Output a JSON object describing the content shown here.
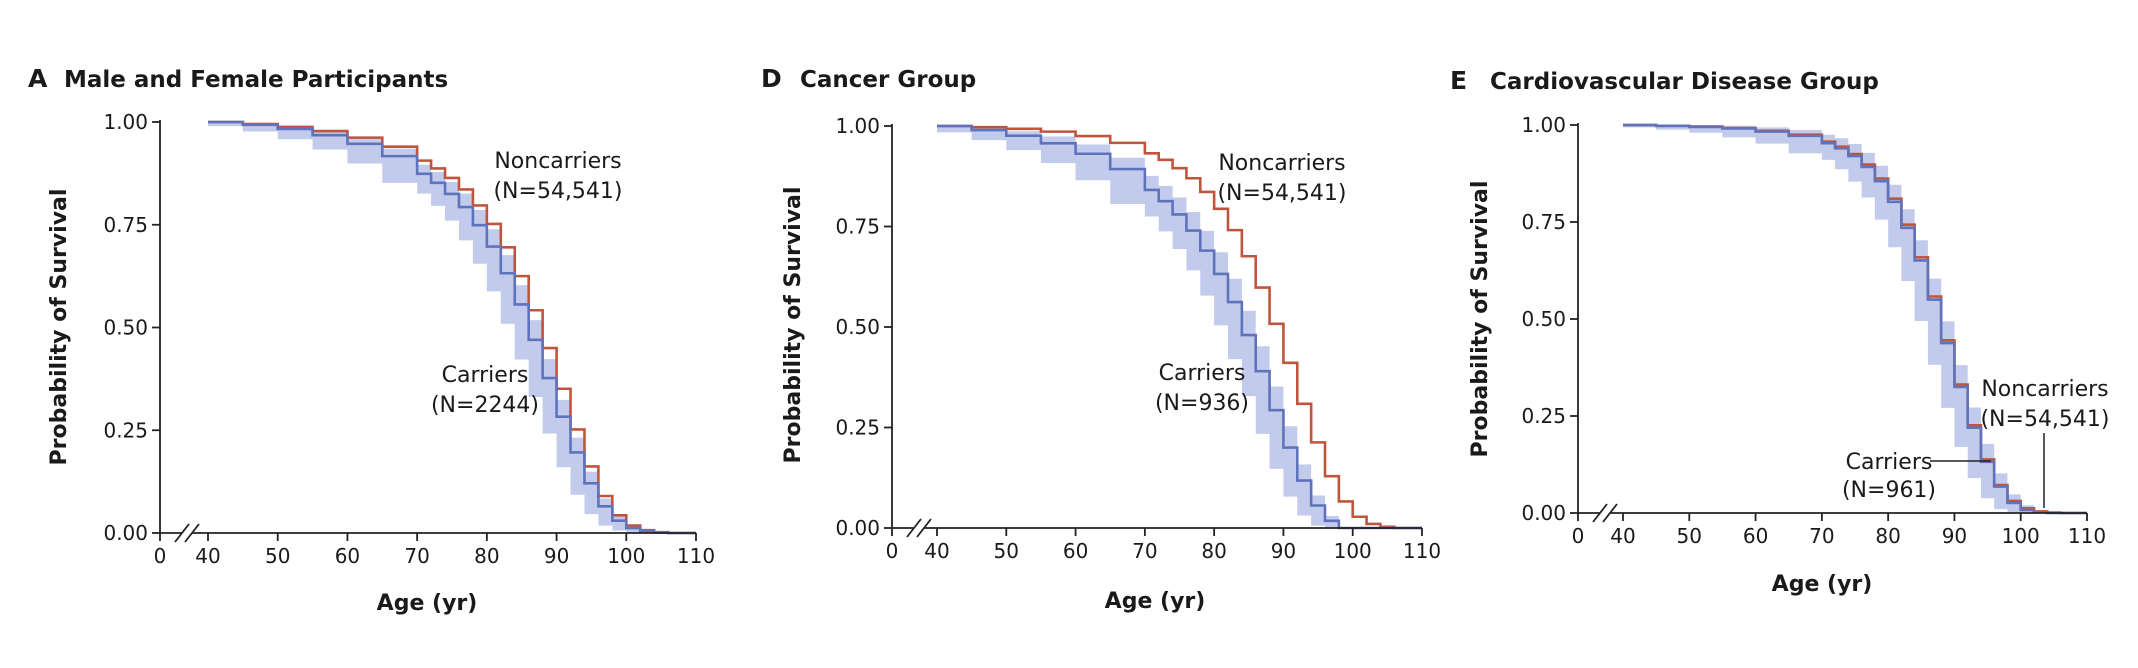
{
  "figure": {
    "panels": [
      {
        "letter": "A",
        "title": "Male and Female Participants",
        "ylabel": "Probability of Survival",
        "xlabel": "Age (yr)",
        "annotations": {
          "noncarriers_name": "Noncarriers",
          "noncarriers_n": "(N=54,541)",
          "carriers_name": "Carriers",
          "carriers_n": "(N=2244)"
        }
      },
      {
        "letter": "D",
        "title": "Cancer Group",
        "ylabel": "Probability of Survival",
        "xlabel": "Age (yr)",
        "annotations": {
          "noncarriers_name": "Noncarriers",
          "noncarriers_n": "(N=54,541)",
          "carriers_name": "Carriers",
          "carriers_n": "(N=936)"
        }
      },
      {
        "letter": "E",
        "title": "Cardiovascular Disease Group",
        "ylabel": "Probability of Survival",
        "xlabel": "Age (yr)",
        "annotations": {
          "noncarriers_name": "Noncarriers",
          "noncarriers_n": "(N=54,541)",
          "carriers_name": "Carriers",
          "carriers_n": "(N=961)"
        }
      }
    ]
  },
  "colors": {
    "noncarriers": "#c0553d",
    "carriers": "#5f73bd",
    "carriers_ci": "#c2cbec",
    "axis": "#222222"
  },
  "chart_data": [
    {
      "type": "line",
      "step": true,
      "title": "Male and Female Participants",
      "xlabel": "Age (yr)",
      "ylabel": "Probability of Survival",
      "xlim": [
        40,
        110
      ],
      "ylim": [
        0,
        1
      ],
      "axis_break": true,
      "x_ticks": [
        "0",
        "40",
        "50",
        "60",
        "70",
        "80",
        "90",
        "100",
        "110"
      ],
      "y_ticks": [
        "0.00",
        "0.25",
        "0.50",
        "0.75",
        "1.00"
      ],
      "x": [
        40,
        45,
        50,
        55,
        60,
        65,
        70,
        72,
        74,
        76,
        78,
        80,
        82,
        84,
        86,
        88,
        90,
        92,
        94,
        96,
        98,
        100,
        102,
        104,
        106,
        110
      ],
      "series": [
        {
          "name": "Noncarriers (N=54,541)",
          "values": [
            1.0,
            0.995,
            0.988,
            0.978,
            0.962,
            0.94,
            0.906,
            0.887,
            0.864,
            0.836,
            0.797,
            0.752,
            0.695,
            0.625,
            0.542,
            0.45,
            0.351,
            0.252,
            0.162,
            0.09,
            0.043,
            0.018,
            0.007,
            0.002,
            0.0,
            0.0
          ]
        },
        {
          "name": "Carriers (N=2244)",
          "values": [
            1.0,
            0.993,
            0.983,
            0.968,
            0.947,
            0.917,
            0.874,
            0.852,
            0.825,
            0.793,
            0.749,
            0.697,
            0.632,
            0.556,
            0.47,
            0.377,
            0.283,
            0.196,
            0.121,
            0.065,
            0.03,
            0.012,
            0.004,
            0.001,
            0.0,
            0.0
          ],
          "ci_lower": [
            1.0,
            0.99,
            0.977,
            0.958,
            0.933,
            0.899,
            0.852,
            0.826,
            0.796,
            0.76,
            0.712,
            0.655,
            0.588,
            0.509,
            0.422,
            0.331,
            0.242,
            0.16,
            0.093,
            0.046,
            0.018,
            0.006,
            0.001,
            0.0,
            0.0,
            0.0
          ],
          "ci_upper": [
            1.0,
            0.996,
            0.989,
            0.978,
            0.961,
            0.935,
            0.896,
            0.878,
            0.854,
            0.826,
            0.786,
            0.739,
            0.676,
            0.603,
            0.518,
            0.423,
            0.324,
            0.232,
            0.149,
            0.084,
            0.042,
            0.018,
            0.007,
            0.002,
            0.0,
            0.0
          ]
        }
      ]
    },
    {
      "type": "line",
      "step": true,
      "title": "Cancer Group",
      "xlabel": "Age (yr)",
      "ylabel": "Probability of Survival",
      "xlim": [
        40,
        110
      ],
      "ylim": [
        0,
        1
      ],
      "axis_break": true,
      "x_ticks": [
        "0",
        "40",
        "50",
        "60",
        "70",
        "80",
        "90",
        "100",
        "110"
      ],
      "y_ticks": [
        "0.00",
        "0.25",
        "0.50",
        "0.75",
        "1.00"
      ],
      "x": [
        40,
        45,
        50,
        55,
        60,
        65,
        70,
        72,
        74,
        76,
        78,
        80,
        82,
        84,
        86,
        88,
        90,
        92,
        94,
        96,
        98,
        100,
        102,
        104,
        106,
        110
      ],
      "series": [
        {
          "name": "Noncarriers (N=54,541)",
          "values": [
            1.0,
            0.997,
            0.993,
            0.986,
            0.975,
            0.958,
            0.932,
            0.916,
            0.895,
            0.87,
            0.836,
            0.794,
            0.741,
            0.676,
            0.598,
            0.508,
            0.411,
            0.309,
            0.213,
            0.129,
            0.066,
            0.028,
            0.01,
            0.003,
            0.0,
            0.0
          ]
        },
        {
          "name": "Carriers (N=936)",
          "values": [
            1.0,
            0.99,
            0.976,
            0.957,
            0.931,
            0.893,
            0.841,
            0.813,
            0.78,
            0.74,
            0.69,
            0.632,
            0.562,
            0.48,
            0.39,
            0.293,
            0.2,
            0.118,
            0.056,
            0.018,
            0.0,
            0.0,
            0.0,
            0.0,
            0.0,
            0.0
          ],
          "ci_lower": [
            1.0,
            0.984,
            0.965,
            0.94,
            0.908,
            0.865,
            0.806,
            0.775,
            0.738,
            0.694,
            0.641,
            0.578,
            0.504,
            0.42,
            0.328,
            0.234,
            0.147,
            0.078,
            0.031,
            0.006,
            0.0,
            0.0,
            0.0,
            0.0,
            0.0,
            0.0
          ],
          "ci_upper": [
            1.0,
            0.996,
            0.987,
            0.974,
            0.954,
            0.921,
            0.876,
            0.851,
            0.822,
            0.786,
            0.739,
            0.686,
            0.62,
            0.54,
            0.452,
            0.352,
            0.253,
            0.158,
            0.081,
            0.03,
            0.0,
            0.0,
            0.0,
            0.0,
            0.0,
            0.0
          ]
        }
      ]
    },
    {
      "type": "line",
      "step": true,
      "title": "Cardiovascular Disease Group",
      "xlabel": "Age (yr)",
      "ylabel": "Probability of Survival",
      "xlim": [
        40,
        110
      ],
      "ylim": [
        0,
        1
      ],
      "axis_break": true,
      "x_ticks": [
        "0",
        "40",
        "50",
        "60",
        "70",
        "80",
        "90",
        "100",
        "110"
      ],
      "y_ticks": [
        "0.00",
        "0.25",
        "0.50",
        "0.75",
        "1.00"
      ],
      "x": [
        40,
        45,
        50,
        55,
        60,
        65,
        70,
        72,
        74,
        76,
        78,
        80,
        82,
        84,
        86,
        88,
        90,
        92,
        94,
        96,
        98,
        100,
        102,
        104,
        106,
        110
      ],
      "series": [
        {
          "name": "Noncarriers (N=54,541)",
          "values": [
            1.0,
            0.998,
            0.996,
            0.992,
            0.985,
            0.975,
            0.957,
            0.944,
            0.925,
            0.898,
            0.862,
            0.81,
            0.743,
            0.659,
            0.558,
            0.445,
            0.331,
            0.226,
            0.138,
            0.072,
            0.031,
            0.012,
            0.004,
            0.001,
            0.0,
            0.0
          ]
        },
        {
          "name": "Carriers (N=961)",
          "values": [
            1.0,
            0.998,
            0.995,
            0.991,
            0.983,
            0.972,
            0.953,
            0.94,
            0.92,
            0.892,
            0.855,
            0.802,
            0.735,
            0.651,
            0.55,
            0.438,
            0.325,
            0.22,
            0.132,
            0.068,
            0.026,
            0.008,
            0.002,
            0.0,
            0.0,
            0.0
          ],
          "ci_lower": [
            1.0,
            0.994,
            0.988,
            0.98,
            0.968,
            0.952,
            0.927,
            0.91,
            0.886,
            0.854,
            0.813,
            0.756,
            0.685,
            0.598,
            0.495,
            0.382,
            0.271,
            0.17,
            0.09,
            0.038,
            0.01,
            0.0,
            0.0,
            0.0,
            0.0,
            0.0
          ],
          "ci_upper": [
            1.0,
            1.0,
            1.0,
            0.998,
            0.994,
            0.987,
            0.975,
            0.966,
            0.951,
            0.928,
            0.895,
            0.846,
            0.783,
            0.703,
            0.604,
            0.494,
            0.381,
            0.272,
            0.178,
            0.102,
            0.048,
            0.02,
            0.007,
            0.002,
            0.0,
            0.0
          ]
        }
      ]
    }
  ]
}
